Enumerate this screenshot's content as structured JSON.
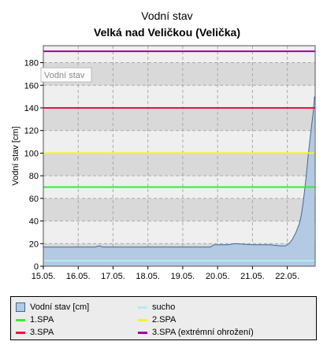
{
  "chart_data": {
    "type": "area",
    "title": "Vodní stav",
    "subtitle": "Velká nad Veličkou (Velička)",
    "ylabel": "Vodní stav [cm]",
    "xlabel": "",
    "ylim": [
      0,
      195
    ],
    "xlim": [
      15,
      22.8
    ],
    "yticks": [
      0,
      20,
      40,
      60,
      80,
      100,
      120,
      140,
      160,
      180
    ],
    "xticks": [
      {
        "x": 15,
        "label": "15.05."
      },
      {
        "x": 16,
        "label": "16.05."
      },
      {
        "x": 17,
        "label": "17.05."
      },
      {
        "x": 18,
        "label": "18.05."
      },
      {
        "x": 19,
        "label": "19.05."
      },
      {
        "x": 20,
        "label": "20.05."
      },
      {
        "x": 21,
        "label": "21.05."
      },
      {
        "x": 22,
        "label": "22.05."
      }
    ],
    "grid": true,
    "plot_label": "Vodní stav",
    "series": [
      {
        "name": "Vodní stav [cm]",
        "kind": "area",
        "color": "#3d6aa0",
        "fill": "#b4c9e2",
        "x": [
          15.0,
          15.5,
          16.0,
          16.5,
          16.6,
          16.7,
          16.8,
          17.0,
          17.5,
          18.0,
          18.5,
          19.0,
          19.5,
          19.8,
          19.9,
          20.0,
          20.3,
          20.5,
          21.0,
          21.3,
          21.5,
          21.8,
          21.95,
          22.05,
          22.15,
          22.25,
          22.35,
          22.4,
          22.45,
          22.5,
          22.55,
          22.6,
          22.65,
          22.7,
          22.75,
          22.78
        ],
        "y": [
          17,
          17,
          17,
          17,
          18,
          17,
          17,
          17,
          17,
          17,
          17,
          17,
          17,
          17,
          19,
          19,
          19,
          20,
          19,
          19,
          19,
          18,
          18,
          20,
          24,
          30,
          38,
          45,
          55,
          68,
          82,
          98,
          112,
          125,
          138,
          150
        ]
      }
    ],
    "thresholds": [
      {
        "name": "sucho",
        "value": 5,
        "color": "#aaf0f0"
      },
      {
        "name": "1.SPA",
        "value": 70,
        "color": "#33ee33"
      },
      {
        "name": "2.SPA",
        "value": 100,
        "color": "#f2f233"
      },
      {
        "name": "3.SPA",
        "value": 140,
        "color": "#ee1144"
      },
      {
        "name": "3.SPA (extrémní ohrožení)",
        "value": 190,
        "color": "#a000a0"
      }
    ],
    "legend": [
      {
        "label": "Vodní stav [cm]",
        "kind": "box",
        "color": "#3d6aa0",
        "fill": "#b4c9e2"
      },
      {
        "label": "sucho",
        "kind": "line",
        "color": "#aaf0f0"
      },
      {
        "label": "1.SPA",
        "kind": "line",
        "color": "#33ee33"
      },
      {
        "label": "2.SPA",
        "kind": "line",
        "color": "#f2f233"
      },
      {
        "label": "3.SPA",
        "kind": "line",
        "color": "#ee1144"
      },
      {
        "label": "3.SPA (extrémní ohrožení)",
        "kind": "line",
        "color": "#a000a0"
      }
    ],
    "legend_position": "bottom"
  }
}
